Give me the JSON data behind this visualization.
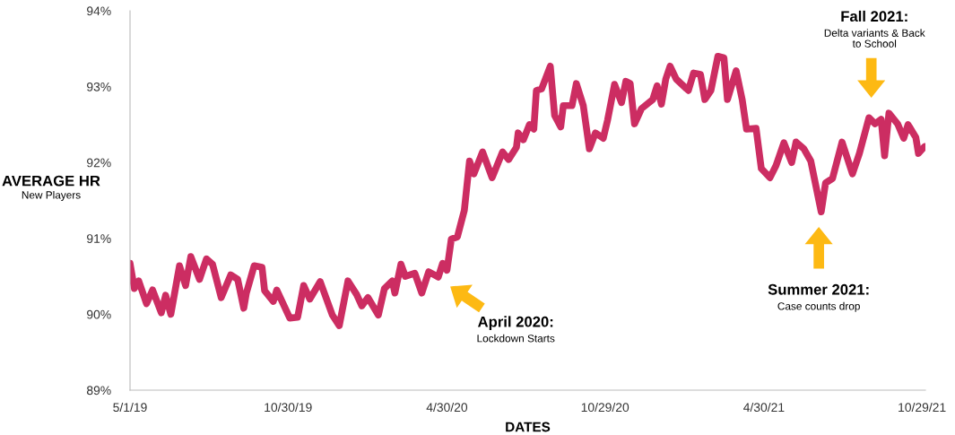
{
  "chart_data": {
    "type": "line",
    "xlabel": "DATES",
    "ylabel": "AVERAGE HR\nNew Players",
    "x": [
      "2019-05-01",
      "2019-05-06",
      "2019-05-11",
      "2019-05-20",
      "2019-05-27",
      "2019-06-06",
      "2019-06-11",
      "2019-06-17",
      "2019-06-27",
      "2019-07-04",
      "2019-07-10",
      "2019-07-20",
      "2019-07-28",
      "2019-08-04",
      "2019-08-14",
      "2019-08-25",
      "2019-09-02",
      "2019-09-09",
      "2019-09-12",
      "2019-09-21",
      "2019-09-30",
      "2019-10-03",
      "2019-10-13",
      "2019-10-17",
      "2019-11-01",
      "2019-11-10",
      "2019-11-17",
      "2019-11-24",
      "2019-12-06",
      "2019-12-20",
      "2019-12-28",
      "2020-01-07",
      "2020-01-17",
      "2020-01-23",
      "2020-01-30",
      "2020-02-11",
      "2020-02-18",
      "2020-02-27",
      "2020-03-01",
      "2020-03-08",
      "2020-03-13",
      "2020-03-24",
      "2020-04-01",
      "2020-04-09",
      "2020-04-20",
      "2020-04-25",
      "2020-04-30",
      "2020-05-05",
      "2020-05-12",
      "2020-05-20",
      "2020-05-26",
      "2020-05-31",
      "2020-06-10",
      "2020-06-21",
      "2020-07-03",
      "2020-07-10",
      "2020-07-19",
      "2020-07-21",
      "2020-07-27",
      "2020-08-03",
      "2020-08-08",
      "2020-08-11",
      "2020-08-17",
      "2020-08-27",
      "2020-09-01",
      "2020-09-08",
      "2020-09-11",
      "2020-09-21",
      "2020-09-26",
      "2020-10-04",
      "2020-10-11",
      "2020-10-18",
      "2020-10-27",
      "2020-11-01",
      "2020-11-09",
      "2020-11-17",
      "2020-11-22",
      "2020-11-27",
      "2020-12-02",
      "2020-12-10",
      "2020-12-23",
      "2020-12-28",
      "2021-01-02",
      "2021-01-07",
      "2021-01-12",
      "2021-01-19",
      "2021-02-02",
      "2021-02-08",
      "2021-02-16",
      "2021-02-21",
      "2021-02-28",
      "2021-03-08",
      "2021-03-15",
      "2021-03-19",
      "2021-03-29",
      "2021-04-05",
      "2021-04-10",
      "2021-04-21",
      "2021-04-27",
      "2021-05-07",
      "2021-05-14",
      "2021-05-23",
      "2021-06-01",
      "2021-06-06",
      "2021-06-15",
      "2021-06-23",
      "2021-07-05",
      "2021-07-10",
      "2021-07-18",
      "2021-07-29",
      "2021-08-10",
      "2021-08-18",
      "2021-08-29",
      "2021-09-05",
      "2021-09-12",
      "2021-09-16",
      "2021-09-21",
      "2021-10-01",
      "2021-10-08",
      "2021-10-13",
      "2021-10-22",
      "2021-10-25",
      "2021-11-01"
    ],
    "series": [
      {
        "color": "#cc2d62",
        "values": [
          90.67,
          90.34,
          90.44,
          90.14,
          90.32,
          90.02,
          90.25,
          90.0,
          90.64,
          90.38,
          90.76,
          90.46,
          90.73,
          90.66,
          90.22,
          90.52,
          90.46,
          90.08,
          90.28,
          90.64,
          90.62,
          90.31,
          90.17,
          90.32,
          89.95,
          89.96,
          90.38,
          90.2,
          90.43,
          89.99,
          89.85,
          90.44,
          90.26,
          90.11,
          90.22,
          89.99,
          90.34,
          90.44,
          90.28,
          90.66,
          90.5,
          90.54,
          90.28,
          90.56,
          90.49,
          90.67,
          90.58,
          90.99,
          91.02,
          91.37,
          92.02,
          91.85,
          92.14,
          91.8,
          92.14,
          92.04,
          92.2,
          92.39,
          92.3,
          92.5,
          92.44,
          92.95,
          92.97,
          93.27,
          92.62,
          92.47,
          92.75,
          92.75,
          93.04,
          92.75,
          92.18,
          92.39,
          92.32,
          92.56,
          93.03,
          92.79,
          93.07,
          93.04,
          92.51,
          92.71,
          92.83,
          93.01,
          92.77,
          93.1,
          93.27,
          93.1,
          92.95,
          93.18,
          93.16,
          92.83,
          92.95,
          93.4,
          93.38,
          92.83,
          93.21,
          92.83,
          92.44,
          92.45,
          91.92,
          91.8,
          91.96,
          92.26,
          92.0,
          92.27,
          92.18,
          92.02,
          91.35,
          91.73,
          91.79,
          92.27,
          91.85,
          92.12,
          92.59,
          92.51,
          92.57,
          92.09,
          92.65,
          92.51,
          92.32,
          92.5,
          92.33,
          92.12,
          92.21
        ]
      }
    ],
    "xlim": [
      "2019-05-01",
      "2021-11-02"
    ],
    "xticks": [
      {
        "value": "2019-05-01",
        "label": "5/1/19"
      },
      {
        "value": "2019-10-30",
        "label": "10/30/19"
      },
      {
        "value": "2020-04-30",
        "label": "4/30/20"
      },
      {
        "value": "2020-10-29",
        "label": "10/29/20"
      },
      {
        "value": "2021-04-30",
        "label": "4/30/21"
      },
      {
        "value": "2021-10-29",
        "label": "10/29/21"
      }
    ],
    "ylim": [
      89,
      94
    ],
    "yticks": [
      {
        "value": 89,
        "label": "89%"
      },
      {
        "value": 90,
        "label": "90%"
      },
      {
        "value": 91,
        "label": "91%"
      },
      {
        "value": 92,
        "label": "92%"
      },
      {
        "value": 93,
        "label": "93%"
      },
      {
        "value": 94,
        "label": "94%"
      }
    ],
    "annotations": [
      "April 2020:\nLockdown Starts",
      "Summer 2021:\nCase counts drop",
      "Fall 2021:\nDelta variants & Back\nto School"
    ],
    "grid": false,
    "legend": false,
    "marker": "none",
    "line_style": "solid"
  }
}
